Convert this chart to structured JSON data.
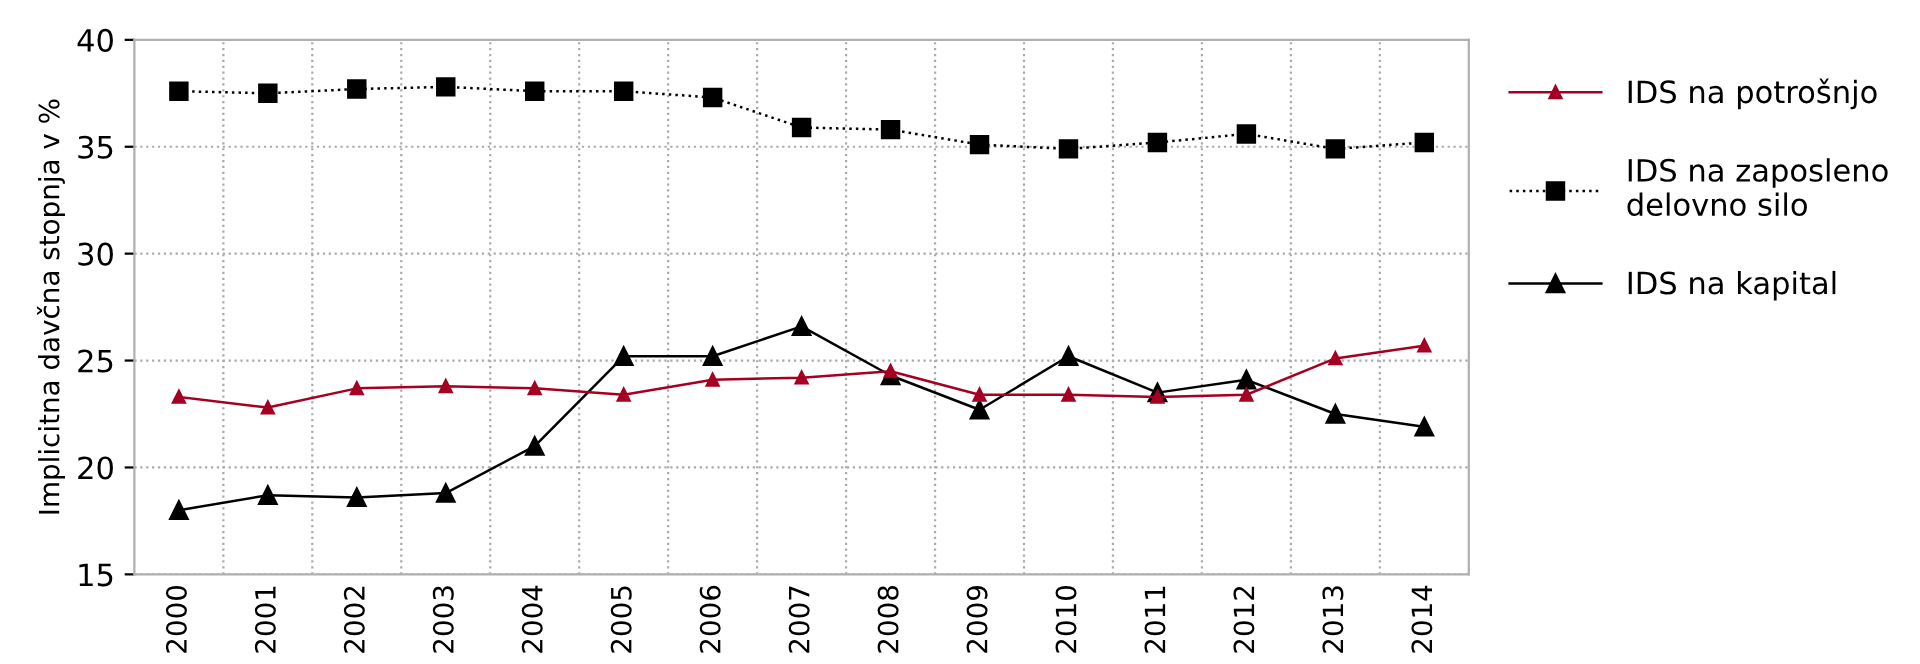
{
  "chart_data": {
    "type": "line",
    "ylabel": "Implicitna davčna stopnja v %",
    "categories": [
      "2000",
      "2001",
      "2002",
      "2003",
      "2004",
      "2005",
      "2006",
      "2007",
      "2008",
      "2009",
      "2010",
      "2011",
      "2012",
      "2013",
      "2014"
    ],
    "series": [
      {
        "name": "IDS na potrošnjo",
        "color": "#a50021",
        "marker": "triangle",
        "line_style": "solid",
        "values": [
          23.3,
          22.8,
          23.7,
          23.8,
          23.7,
          23.4,
          24.1,
          24.2,
          24.5,
          23.4,
          23.4,
          23.3,
          23.4,
          25.1,
          25.7
        ]
      },
      {
        "name": "IDS na zaposleno delovno silo",
        "color": "#000000",
        "marker": "square",
        "line_style": "dotted",
        "values": [
          37.6,
          37.5,
          37.7,
          37.8,
          37.6,
          37.6,
          37.3,
          35.9,
          35.8,
          35.1,
          34.9,
          35.2,
          35.6,
          34.9,
          35.2
        ]
      },
      {
        "name": "IDS na kapital",
        "color": "#000000",
        "marker": "triangle",
        "line_style": "solid",
        "values": [
          18.0,
          18.7,
          18.6,
          18.8,
          21.0,
          25.2,
          25.2,
          26.6,
          24.3,
          22.7,
          25.2,
          23.5,
          24.1,
          22.5,
          21.9
        ]
      }
    ],
    "ylim": [
      15,
      40
    ],
    "yticks": [
      15,
      20,
      25,
      30,
      35,
      40
    ],
    "grid": true,
    "legend": "right"
  }
}
